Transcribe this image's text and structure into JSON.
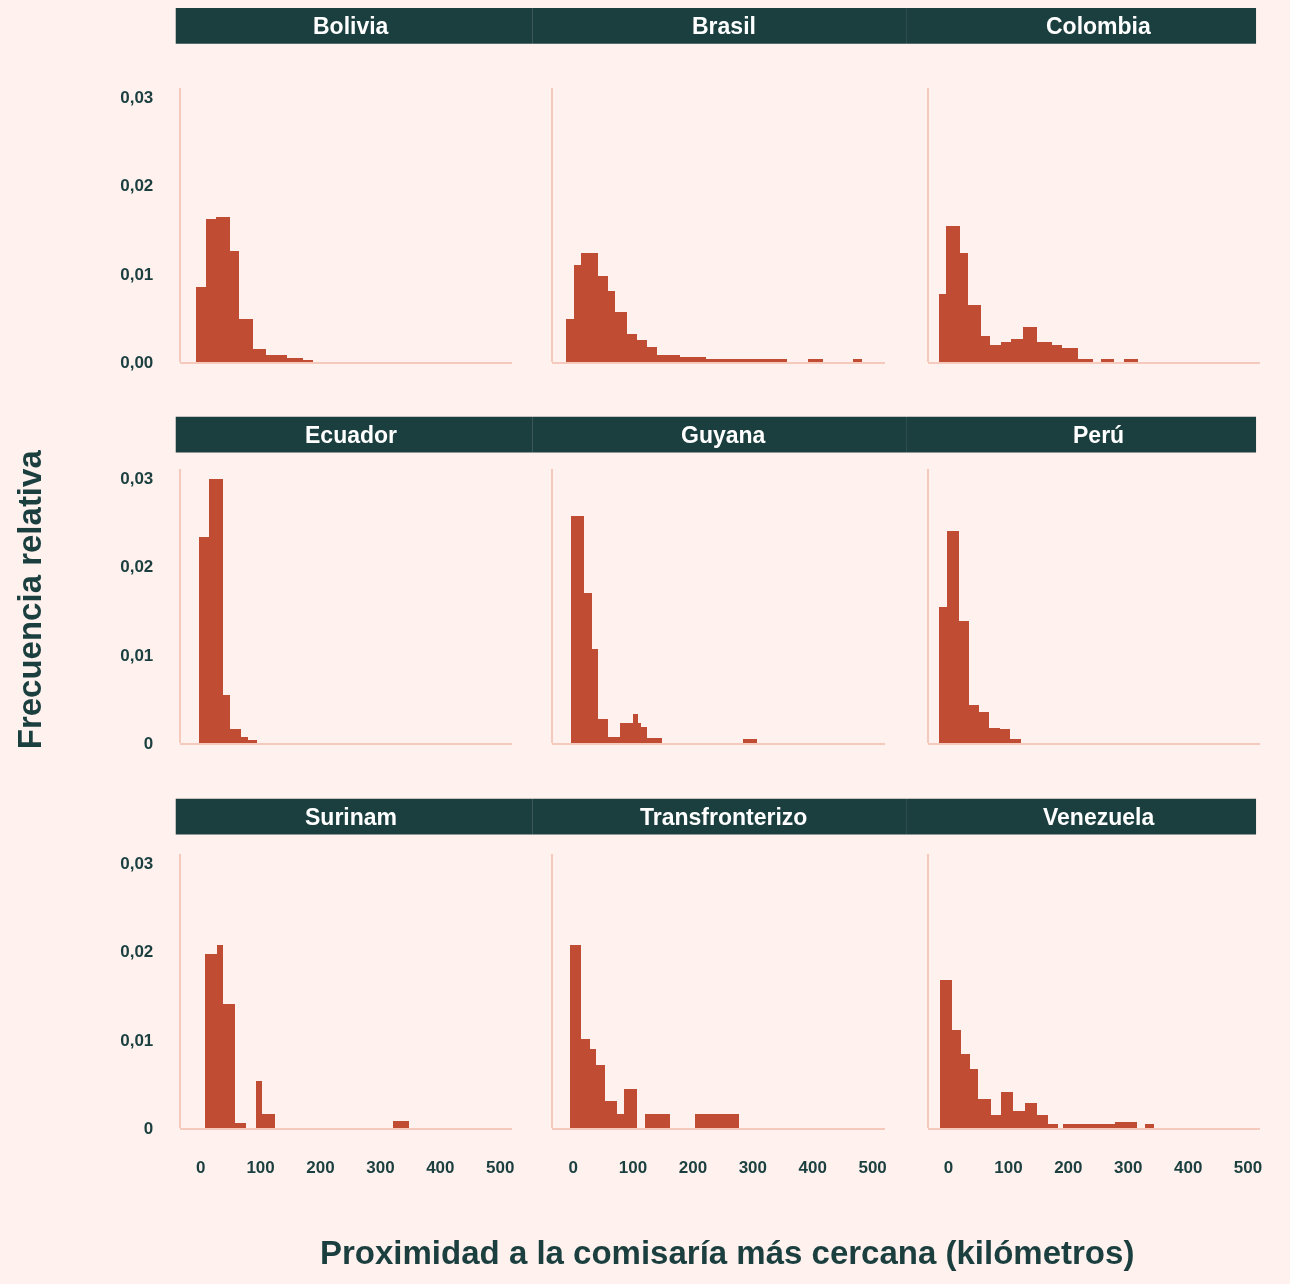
{
  "chart_data": [
    {
      "type": "histogram",
      "title": "Bolivia",
      "color": "#bf4c33",
      "bins": [
        -8,
        8,
        25,
        48,
        63,
        87,
        108,
        143,
        170,
        187
      ],
      "values": [
        0.0085,
        0.0162,
        0.0164,
        0.0126,
        0.0048,
        0.0015,
        0.0008,
        0.0004,
        0.0002
      ],
      "xlim": [
        -35,
        520
      ],
      "ylim": [
        0,
        0.031
      ],
      "xticks": [
        0,
        100,
        200,
        300,
        400,
        500
      ],
      "yticks": [
        {
          "value": 0,
          "label": "0,00"
        },
        {
          "value": 0.01,
          "label": "0,01"
        },
        {
          "value": 0.02,
          "label": "0,02"
        },
        {
          "value": 0.03,
          "label": "0,03"
        }
      ],
      "tick_labels": "y"
    },
    {
      "type": "histogram",
      "title": "Brasil",
      "color": "#bf4c33",
      "bins": [
        -11,
        2,
        13,
        42,
        58,
        70,
        90,
        107,
        123,
        140,
        178,
        222,
        358,
        393,
        417,
        467,
        482
      ],
      "values": [
        0.0049,
        0.011,
        0.0123,
        0.0097,
        0.008,
        0.0056,
        0.0032,
        0.0025,
        0.0017,
        0.0008,
        0.0006,
        0.0003,
        0,
        0.0003,
        0,
        0.0003
      ],
      "xlim": [
        -35,
        520
      ],
      "ylim": [
        0,
        0.031
      ],
      "xticks": [
        0,
        100,
        200,
        300,
        400,
        500
      ],
      "tick_labels": false
    },
    {
      "type": "histogram",
      "title": "Colombia",
      "color": "#bf4c33",
      "bins": [
        -17,
        -5,
        18,
        32,
        53,
        68,
        87,
        103,
        123,
        147,
        172,
        188,
        215,
        240,
        253,
        275,
        293,
        315
      ],
      "values": [
        0.0077,
        0.0154,
        0.0123,
        0.0064,
        0.0029,
        0.0019,
        0.0022,
        0.0026,
        0.0039,
        0.0022,
        0.0019,
        0.0016,
        0.0003,
        0,
        0.0003,
        0,
        0.0003
      ],
      "xlim": [
        -35,
        520
      ],
      "ylim": [
        0,
        0.031
      ],
      "xticks": [
        0,
        100,
        200,
        300,
        400,
        500
      ],
      "tick_labels": false
    },
    {
      "type": "histogram",
      "title": "Ecuador",
      "ylabel": "Frecuencia relativa",
      "color": "#bf4c33",
      "bins": [
        -3,
        13,
        37,
        48,
        67,
        78,
        93
      ],
      "values": [
        0.0233,
        0.0299,
        0.0054,
        0.0016,
        0.0007,
        0.0003
      ],
      "xlim": [
        -35,
        520
      ],
      "ylim": [
        0,
        0.031
      ],
      "xticks": [
        0,
        100,
        200,
        300,
        400,
        500
      ],
      "yticks": [
        {
          "value": 0,
          "label": "0"
        },
        {
          "value": 0.01,
          "label": "0,01"
        },
        {
          "value": 0.02,
          "label": "0,02"
        },
        {
          "value": 0.03,
          "label": "0,03"
        }
      ],
      "tick_labels": "y"
    },
    {
      "type": "histogram",
      "title": "Guyana",
      "color": "#bf4c33",
      "bins": [
        -4,
        19,
        31,
        42,
        59,
        78,
        100,
        109,
        113,
        124,
        149,
        283,
        307
      ],
      "values": [
        0.0257,
        0.017,
        0.0106,
        0.0027,
        0.0007,
        0.0023,
        0.0033,
        0.0023,
        0.0018,
        0.0005,
        0,
        0.0004
      ],
      "xlim": [
        -35,
        520
      ],
      "ylim": [
        0,
        0.031
      ],
      "xticks": [
        0,
        100,
        200,
        300,
        400,
        500
      ],
      "tick_labels": false
    },
    {
      "type": "histogram",
      "title": "Perú",
      "color": "#bf4c33",
      "bins": [
        -17,
        -3,
        16,
        33,
        50,
        67,
        85,
        102,
        120
      ],
      "values": [
        0.0154,
        0.024,
        0.0138,
        0.0043,
        0.0035,
        0.0017,
        0.0016,
        0.0004
      ],
      "xlim": [
        -35,
        520
      ],
      "ylim": [
        0,
        0.031
      ],
      "xticks": [
        0,
        100,
        200,
        300,
        400,
        500
      ],
      "tick_labels": false
    },
    {
      "type": "histogram",
      "title": "Surinam",
      "color": "#bf4c33",
      "bins": [
        7,
        27,
        37,
        56,
        75,
        92,
        102,
        123,
        320,
        348
      ],
      "values": [
        0.0197,
        0.0207,
        0.014,
        0.0006,
        0,
        0.0053,
        0.0016,
        0,
        0.0008
      ],
      "xlim": [
        -35,
        520
      ],
      "ylim": [
        0,
        0.031
      ],
      "xticks": [
        0,
        100,
        200,
        300,
        400,
        500
      ],
      "yticks": [
        {
          "value": 0,
          "label": "0"
        },
        {
          "value": 0.01,
          "label": "0,01"
        },
        {
          "value": 0.02,
          "label": "0,02"
        },
        {
          "value": 0.03,
          "label": "0,03"
        }
      ]
    },
    {
      "type": "histogram",
      "title": "Transfronterizo",
      "xlabel": "Proximidad a la comisaría más cercana (kilómetros)",
      "color": "#bf4c33",
      "bins": [
        -5,
        14,
        28,
        38,
        54,
        73,
        86,
        107,
        120,
        162,
        203,
        277
      ],
      "values": [
        0.0207,
        0.0101,
        0.0089,
        0.0071,
        0.003,
        0.0016,
        0.0044,
        0,
        0.0016,
        0,
        0.0016
      ],
      "xlim": [
        -35,
        520
      ],
      "ylim": [
        0,
        0.031
      ],
      "xticks": [
        0,
        100,
        200,
        300,
        400,
        500
      ],
      "tick_labels": "x"
    },
    {
      "type": "histogram",
      "title": "Venezuela",
      "color": "#bf4c33",
      "bins": [
        -15,
        5,
        20,
        35,
        48,
        70,
        87,
        107,
        127,
        147,
        165,
        182,
        190,
        277,
        314,
        327,
        342
      ],
      "values": [
        0.0167,
        0.0111,
        0.0084,
        0.0067,
        0.0033,
        0.0015,
        0.0041,
        0.0019,
        0.0028,
        0.0015,
        0.0004,
        0,
        0.0004,
        0.0007,
        0,
        0.0004
      ],
      "xlim": [
        -35,
        520
      ],
      "ylim": [
        0,
        0.031
      ],
      "xticks": [
        0,
        100,
        200,
        300,
        400,
        500
      ],
      "tick_labels": "x"
    }
  ]
}
